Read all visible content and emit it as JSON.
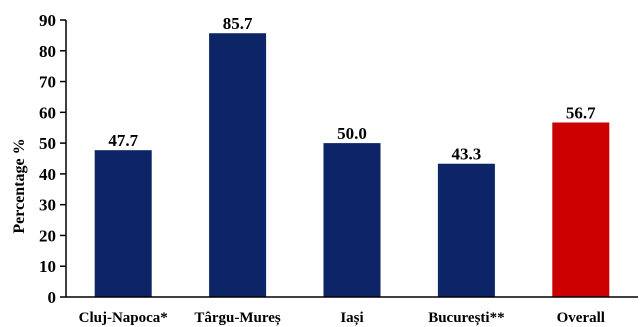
{
  "chart_data": {
    "type": "bar",
    "title": "",
    "xlabel": "",
    "ylabel": "Percentage %",
    "ylim": [
      0,
      90
    ],
    "yticks": [
      0,
      10,
      20,
      30,
      40,
      50,
      60,
      70,
      80,
      90
    ],
    "grid": false,
    "legend": "none",
    "categories": [
      "Cluj-Napoca*",
      "Târgu-Mureș",
      "Iași",
      "București**",
      "Overall"
    ],
    "values": [
      47.7,
      85.7,
      50.0,
      43.3,
      56.7
    ],
    "value_labels": [
      "47.7",
      "85.7",
      "50.0",
      "43.3",
      "56.7"
    ],
    "colors": [
      "#0d2466",
      "#0d2466",
      "#0d2466",
      "#0d2466",
      "#cc0000"
    ]
  }
}
